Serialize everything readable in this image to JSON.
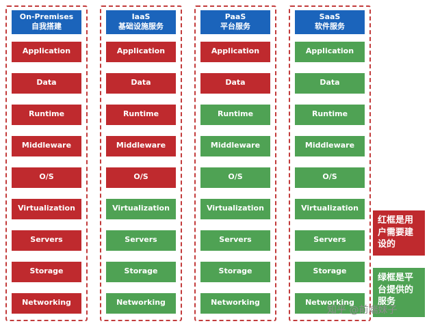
{
  "columns": [
    {
      "id": "on-premises",
      "title_line1": "On-Premises",
      "title_line2": "自我搭建",
      "blocks": [
        {
          "label": "Application",
          "color": "red"
        },
        {
          "label": "Data",
          "color": "red"
        },
        {
          "label": "Runtime",
          "color": "red"
        },
        {
          "label": "Middleware",
          "color": "red"
        },
        {
          "label": "O/S",
          "color": "red"
        },
        {
          "label": "Virtualization",
          "color": "red"
        },
        {
          "label": "Servers",
          "color": "red"
        },
        {
          "label": "Storage",
          "color": "red"
        },
        {
          "label": "Networking",
          "color": "red"
        }
      ]
    },
    {
      "id": "iaas",
      "title_line1": "IaaS",
      "title_line2": "基础设施服务",
      "blocks": [
        {
          "label": "Application",
          "color": "red"
        },
        {
          "label": "Data",
          "color": "red"
        },
        {
          "label": "Runtime",
          "color": "red"
        },
        {
          "label": "Middleware",
          "color": "red"
        },
        {
          "label": "O/S",
          "color": "red"
        },
        {
          "label": "Virtualization",
          "color": "green"
        },
        {
          "label": "Servers",
          "color": "green"
        },
        {
          "label": "Storage",
          "color": "green"
        },
        {
          "label": "Networking",
          "color": "green"
        }
      ]
    },
    {
      "id": "paas",
      "title_line1": "PaaS",
      "title_line2": "平台服务",
      "blocks": [
        {
          "label": "Application",
          "color": "red"
        },
        {
          "label": "Data",
          "color": "red"
        },
        {
          "label": "Runtime",
          "color": "green"
        },
        {
          "label": "Middleware",
          "color": "green"
        },
        {
          "label": "O/S",
          "color": "green"
        },
        {
          "label": "Virtualization",
          "color": "green"
        },
        {
          "label": "Servers",
          "color": "green"
        },
        {
          "label": "Storage",
          "color": "green"
        },
        {
          "label": "Networking",
          "color": "green"
        }
      ]
    },
    {
      "id": "saas",
      "title_line1": "SaaS",
      "title_line2": "软件服务",
      "blocks": [
        {
          "label": "Application",
          "color": "green"
        },
        {
          "label": "Data",
          "color": "green"
        },
        {
          "label": "Runtime",
          "color": "green"
        },
        {
          "label": "Middleware",
          "color": "green"
        },
        {
          "label": "O/S",
          "color": "green"
        },
        {
          "label": "Virtualization",
          "color": "green"
        },
        {
          "label": "Servers",
          "color": "green"
        },
        {
          "label": "Storage",
          "color": "green"
        },
        {
          "label": "Networking",
          "color": "green"
        }
      ]
    }
  ],
  "legend": {
    "red_note": "红框是用户需要建设的",
    "green_note": "绿框是平台提供的服务"
  },
  "watermark": "知乎 @前端妹子",
  "colors": {
    "block_red": "#bf2a2e",
    "block_green": "#4fa254",
    "header_blue": "#1b64bb",
    "dashed_border_red": "#c23a3a"
  }
}
